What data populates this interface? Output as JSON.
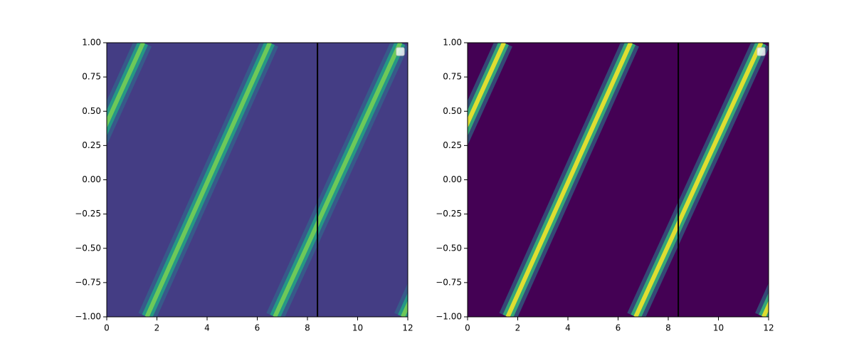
{
  "chart_data": [
    {
      "type": "heatmap",
      "xlim": [
        0,
        12
      ],
      "ylim": [
        -1,
        1
      ],
      "xticks": [
        0,
        2,
        4,
        6,
        8,
        10,
        12
      ],
      "yticks": [
        {
          "value": -1,
          "label": "−1.00"
        },
        {
          "value": -0.75,
          "label": "−0.75"
        },
        {
          "value": -0.5,
          "label": "−0.50"
        },
        {
          "value": -0.25,
          "label": "−0.25"
        },
        {
          "value": 0,
          "label": "0.00"
        },
        {
          "value": 0.25,
          "label": "0.25"
        },
        {
          "value": 0.5,
          "label": "0.50"
        },
        {
          "value": 0.75,
          "label": "0.75"
        },
        {
          "value": 1,
          "label": "1.00"
        }
      ],
      "background": "#443d84",
      "colors": [
        "#2f6e8e",
        "#22a384",
        "#7ad151"
      ],
      "bands": [
        {
          "x": [
            -3.5,
            1.45
          ],
          "y": [
            -1,
            1
          ]
        },
        {
          "x": [
            1.6,
            6.5
          ],
          "y": [
            -1,
            1
          ]
        },
        {
          "x": [
            6.7,
            11.7
          ],
          "y": [
            -1,
            1
          ]
        },
        {
          "x": [
            11.8,
            16.7
          ],
          "y": [
            -1,
            1
          ]
        }
      ],
      "vline": 8.4,
      "vline_color": "#000000"
    },
    {
      "type": "heatmap",
      "xlim": [
        0,
        12
      ],
      "ylim": [
        -1,
        1
      ],
      "xticks": [
        0,
        2,
        4,
        6,
        8,
        10,
        12
      ],
      "yticks": [
        {
          "value": -1,
          "label": "−1.00"
        },
        {
          "value": -0.75,
          "label": "−0.75"
        },
        {
          "value": -0.5,
          "label": "−0.50"
        },
        {
          "value": -0.25,
          "label": "−0.25"
        },
        {
          "value": 0,
          "label": "0.00"
        },
        {
          "value": 0.25,
          "label": "0.25"
        },
        {
          "value": 0.5,
          "label": "0.50"
        },
        {
          "value": 0.75,
          "label": "0.75"
        },
        {
          "value": 1,
          "label": "1.00"
        }
      ],
      "background": "#440154",
      "colors": [
        "#2a788e",
        "#35b779",
        "#fde725"
      ],
      "bands": [
        {
          "x": [
            -3.5,
            1.45
          ],
          "y": [
            -1,
            1
          ]
        },
        {
          "x": [
            1.6,
            6.5
          ],
          "y": [
            -1,
            1
          ]
        },
        {
          "x": [
            6.7,
            11.7
          ],
          "y": [
            -1,
            1
          ]
        },
        {
          "x": [
            11.8,
            16.7
          ],
          "y": [
            -1,
            1
          ]
        }
      ],
      "vline": 8.4,
      "vline_color": "#000000"
    }
  ]
}
